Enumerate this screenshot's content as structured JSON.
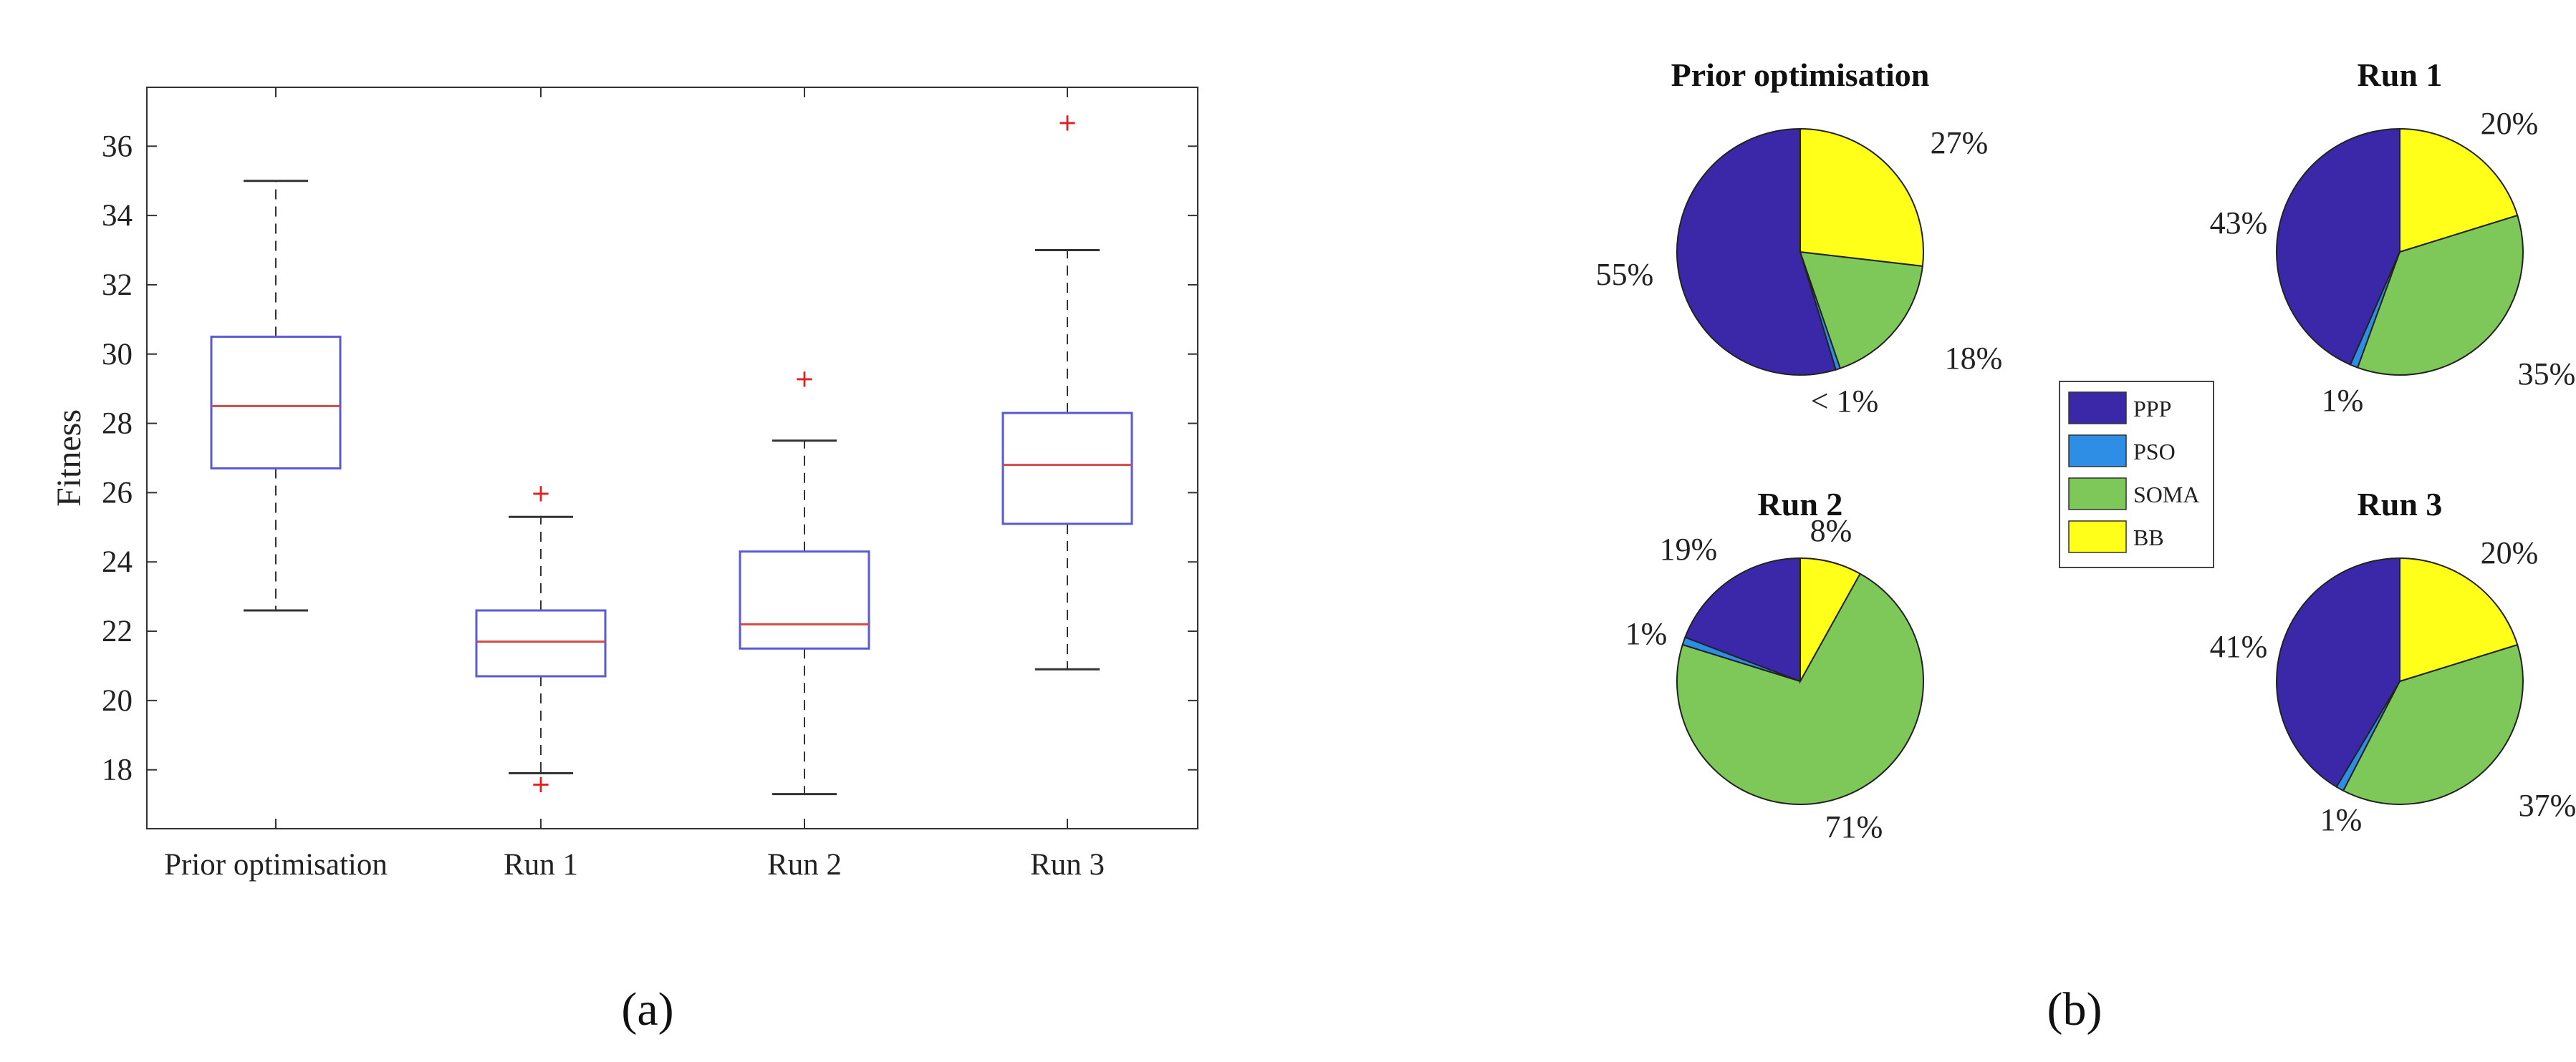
{
  "chart_data": [
    {
      "panel_label": "(a)",
      "type": "boxplot",
      "ylabel": "Fitness",
      "categories": [
        "Prior optimisation",
        "Run 1",
        "Run 2",
        "Run 3"
      ],
      "ylim": [
        16.3,
        37.7
      ],
      "yticks": [
        "18",
        "20",
        "22",
        "24",
        "26",
        "28",
        "30",
        "32",
        "34",
        "36"
      ],
      "ytick_values": [
        18,
        20,
        22,
        24,
        26,
        28,
        30,
        32,
        34,
        36
      ],
      "boxes": [
        {
          "category": "Prior optimisation",
          "whisker_low": 22.6,
          "q1": 26.7,
          "median": 28.5,
          "q3": 30.5,
          "whisker_high": 35.0,
          "outliers": []
        },
        {
          "category": "Run 1",
          "whisker_low": 17.9,
          "q1": 20.7,
          "median": 21.7,
          "q3": 22.6,
          "whisker_high": 25.3,
          "outliers": [
            17.6,
            26.0
          ]
        },
        {
          "category": "Run 2",
          "whisker_low": 17.3,
          "q1": 21.5,
          "median": 22.2,
          "q3": 24.3,
          "whisker_high": 27.5,
          "outliers": [
            29.3
          ]
        },
        {
          "category": "Run 3",
          "whisker_low": 20.9,
          "q1": 25.1,
          "median": 26.8,
          "q3": 28.3,
          "whisker_high": 33.0,
          "outliers": [
            36.7
          ]
        }
      ],
      "colors": {
        "box": "#5a5ad2",
        "median": "#d14a4a",
        "whisker": "#333333",
        "outlier": "#e02020"
      },
      "grid": false
    },
    {
      "panel_label": "(b)",
      "type": "pie",
      "legend": {
        "placement": "center",
        "entries": [
          {
            "name": "PPP",
            "color": "#3b28a8"
          },
          {
            "name": "PSO",
            "color": "#2e8ee6"
          },
          {
            "name": "SOMA",
            "color": "#7ec85a"
          },
          {
            "name": "BB",
            "color": "#ffff1a"
          }
        ]
      },
      "pies": [
        {
          "title": "Prior optimisation",
          "values": [
            55,
            0.6,
            18,
            27
          ],
          "labels": [
            "55%",
            "< 1%",
            "18%",
            "27%"
          ]
        },
        {
          "title": "Run 1",
          "values": [
            43,
            1,
            35,
            20
          ],
          "labels": [
            "43%",
            "1%",
            "35%",
            "20%"
          ]
        },
        {
          "title": "Run 2",
          "values": [
            19,
            1,
            71,
            8
          ],
          "labels": [
            "19%",
            "1%",
            "71%",
            "8%"
          ]
        },
        {
          "title": "Run 3",
          "values": [
            41,
            1,
            37,
            20
          ],
          "labels": [
            "41%",
            "1%",
            "37%",
            "20%"
          ]
        }
      ]
    }
  ]
}
